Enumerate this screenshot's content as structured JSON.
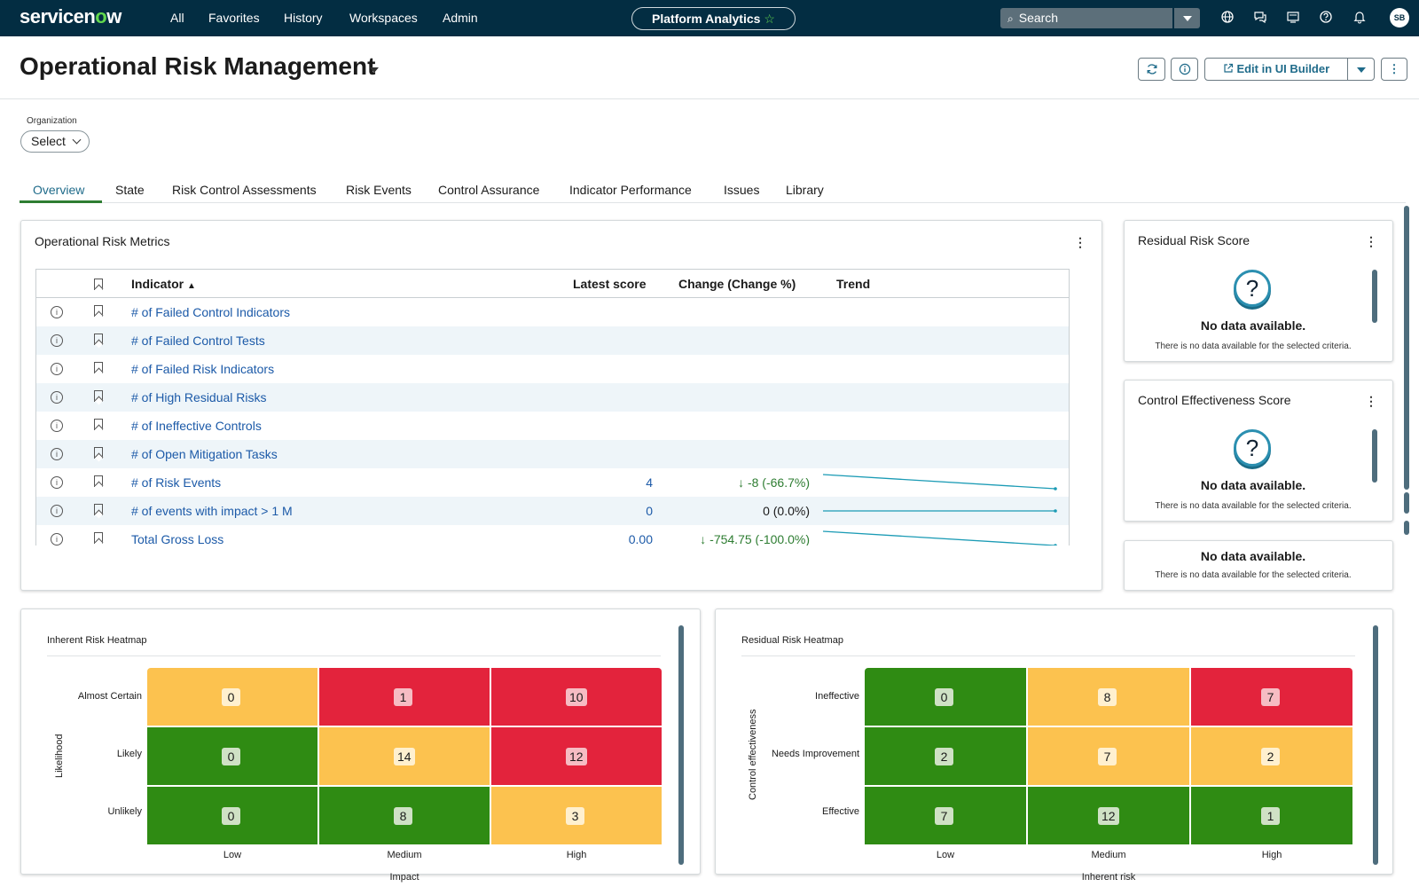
{
  "nav": {
    "logo": "servicenow",
    "items": [
      "All",
      "Favorites",
      "History",
      "Workspaces",
      "Admin"
    ],
    "pill_label": "Platform Analytics",
    "search_placeholder": "Search",
    "avatar_initials": "SB"
  },
  "header": {
    "title": "Operational Risk Management",
    "edit_label": "Edit in UI Builder"
  },
  "filter": {
    "label": "Organization",
    "value": "Select"
  },
  "tabs": [
    "Overview",
    "State",
    "Risk Control Assessments",
    "Risk Events",
    "Control Assurance",
    "Indicator Performance",
    "Issues",
    "Library"
  ],
  "metrics": {
    "title": "Operational Risk Metrics",
    "columns": [
      "Indicator",
      "Latest score",
      "Change (Change %)",
      "Trend"
    ],
    "rows": [
      {
        "indicator": "# of Failed Control Indicators",
        "score": "",
        "change": "",
        "trend": "none"
      },
      {
        "indicator": "# of Failed Control Tests",
        "score": "",
        "change": "",
        "trend": "none"
      },
      {
        "indicator": "# of Failed Risk Indicators",
        "score": "",
        "change": "",
        "trend": "none"
      },
      {
        "indicator": "# of High Residual Risks",
        "score": "",
        "change": "",
        "trend": "none"
      },
      {
        "indicator": "# of Ineffective Controls",
        "score": "",
        "change": "",
        "trend": "none"
      },
      {
        "indicator": "# of Open Mitigation Tasks",
        "score": "",
        "change": "",
        "trend": "none"
      },
      {
        "indicator": "# of Risk Events",
        "score": "4",
        "change": "-8 (-66.7%)",
        "direction": "down",
        "trend": "down"
      },
      {
        "indicator": "# of events with impact > 1 M",
        "score": "0",
        "change": "0 (0.0%)",
        "direction": "flat",
        "trend": "flat"
      },
      {
        "indicator": "Total Gross Loss",
        "score": "0.00",
        "change": "-754.75 (-100.0%)",
        "direction": "down",
        "trend": "down"
      }
    ]
  },
  "scores": [
    {
      "title": "Residual Risk Score",
      "nodata": "No data available.",
      "nodata_sub": "There is no data available for the selected criteria."
    },
    {
      "title": "Control Effectiveness Score",
      "nodata": "No data available.",
      "nodata_sub": "There is no data available for the selected criteria."
    },
    {
      "title": "",
      "nodata": "No data available.",
      "nodata_sub": "There is no data available for the selected criteria."
    }
  ],
  "inherent_heatmap": {
    "title": "Inherent Risk Heatmap",
    "y_label": "Likelihood",
    "x_label": "Impact",
    "rows": [
      "Almost Certain",
      "Likely",
      "Unlikely"
    ],
    "cols": [
      "Low",
      "Medium",
      "High"
    ],
    "values": [
      [
        "0",
        "1",
        "10"
      ],
      [
        "0",
        "14",
        "12"
      ],
      [
        "0",
        "8",
        "3"
      ]
    ],
    "colors": [
      [
        "amber",
        "red",
        "red"
      ],
      [
        "green",
        "amber",
        "red"
      ],
      [
        "green",
        "green",
        "amber"
      ]
    ]
  },
  "residual_heatmap": {
    "title": "Residual Risk Heatmap",
    "y_label": "Control effectiveness",
    "x_label": "Inherent risk",
    "rows": [
      "Ineffective",
      "Needs Improvement",
      "Effective"
    ],
    "cols": [
      "Low",
      "Medium",
      "High"
    ],
    "values": [
      [
        "0",
        "8",
        "7"
      ],
      [
        "2",
        "7",
        "2"
      ],
      [
        "7",
        "12",
        "1"
      ]
    ],
    "colors": [
      [
        "green",
        "amber",
        "red"
      ],
      [
        "green",
        "amber",
        "amber"
      ],
      [
        "green",
        "green",
        "green"
      ]
    ]
  },
  "palette": {
    "nav_bg": "#032d42",
    "accent": "#1f6b8a",
    "link": "#1c5aa8",
    "trend_line": "#1b9bb5",
    "down_green": "#2e7d32",
    "green": "#2f8b13",
    "amber": "#fcc24f",
    "red": "#e3233c"
  }
}
